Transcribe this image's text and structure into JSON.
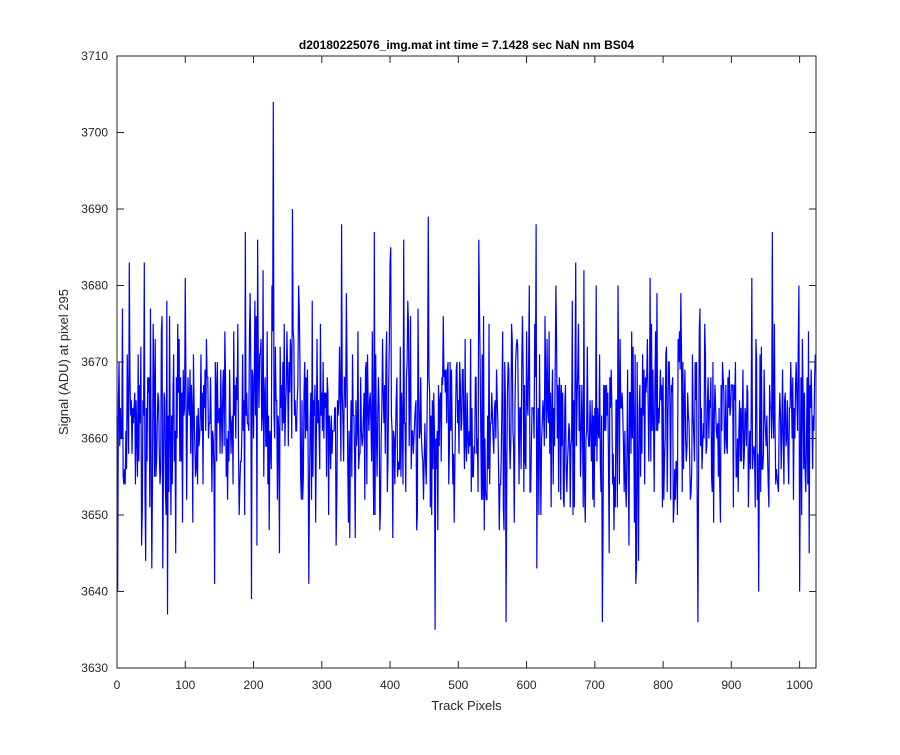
{
  "chart_data": {
    "type": "line",
    "title": "d20180225076_img.mat int time = 7.1428 sec  NaN nm BS04",
    "xlabel": "Track Pixels",
    "ylabel": "Signal (ADU) at pixel 295",
    "xlim": [
      0,
      1024
    ],
    "ylim": [
      3630,
      3710
    ],
    "xticks": [
      0,
      100,
      200,
      300,
      400,
      500,
      600,
      700,
      800,
      900,
      1000
    ],
    "yticks": [
      3630,
      3640,
      3650,
      3660,
      3670,
      3680,
      3690,
      3700,
      3710
    ],
    "grid": false,
    "series": [
      {
        "name": "",
        "color": "#0000ff",
        "length": 1024,
        "mean": 3662.3,
        "noise_std": 7.2,
        "min": 3635,
        "max": 3704,
        "notable_points": [
          {
            "x": 1,
            "y": 3640
          },
          {
            "x": 8,
            "y": 3677
          },
          {
            "x": 18,
            "y": 3683
          },
          {
            "x": 36,
            "y": 3646
          },
          {
            "x": 40,
            "y": 3683
          },
          {
            "x": 67,
            "y": 3643
          },
          {
            "x": 74,
            "y": 3637
          },
          {
            "x": 86,
            "y": 3645
          },
          {
            "x": 100,
            "y": 3681
          },
          {
            "x": 143,
            "y": 3641
          },
          {
            "x": 188,
            "y": 3687
          },
          {
            "x": 197,
            "y": 3639
          },
          {
            "x": 206,
            "y": 3686
          },
          {
            "x": 229,
            "y": 3704
          },
          {
            "x": 238,
            "y": 3645
          },
          {
            "x": 257,
            "y": 3690
          },
          {
            "x": 329,
            "y": 3688
          },
          {
            "x": 377,
            "y": 3687
          },
          {
            "x": 400,
            "y": 3683
          },
          {
            "x": 420,
            "y": 3686
          },
          {
            "x": 440,
            "y": 3650
          },
          {
            "x": 456,
            "y": 3689
          },
          {
            "x": 466,
            "y": 3635
          },
          {
            "x": 470,
            "y": 3648
          },
          {
            "x": 530,
            "y": 3686
          },
          {
            "x": 570,
            "y": 3636
          },
          {
            "x": 614,
            "y": 3688
          },
          {
            "x": 711,
            "y": 3636
          },
          {
            "x": 760,
            "y": 3641
          },
          {
            "x": 851,
            "y": 3636
          },
          {
            "x": 940,
            "y": 3640
          },
          {
            "x": 960,
            "y": 3687
          },
          {
            "x": 1000,
            "y": 3640
          },
          {
            "x": 1014,
            "y": 3645
          }
        ]
      }
    ]
  }
}
